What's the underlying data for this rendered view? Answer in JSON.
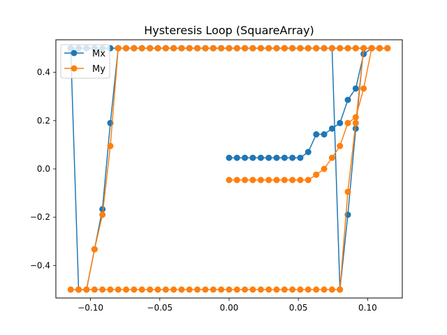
{
  "chart_data": {
    "type": "line",
    "title": "Hysteresis Loop (SquareArray)",
    "xlabel": "",
    "ylabel": "",
    "xlim": [
      -0.125,
      0.125
    ],
    "ylim": [
      -0.535,
      0.535
    ],
    "xticks": [
      -0.1,
      -0.05,
      0.0,
      0.05,
      0.1
    ],
    "xtick_labels": [
      "−0.10",
      "−0.05",
      "0.00",
      "0.05",
      "0.10"
    ],
    "yticks": [
      -0.4,
      -0.2,
      0.0,
      0.2,
      0.4
    ],
    "ytick_labels": [
      "−0.4",
      "−0.2",
      "0.0",
      "0.2",
      "0.4"
    ],
    "grid": false,
    "legend_position": "upper-left",
    "series": [
      {
        "name": "Mx",
        "color": "#1f77b4",
        "marker": "circle",
        "x": [
          0.0,
          0.0057,
          0.0114,
          0.0171,
          0.0229,
          0.0286,
          0.0343,
          0.04,
          0.0457,
          0.0514,
          0.0571,
          0.0629,
          0.0686,
          0.0743,
          0.08,
          0.0857,
          0.0914,
          0.0971,
          0.1029,
          0.1086,
          0.1143,
          0.1086,
          0.1029,
          0.0971,
          0.0914,
          0.0857,
          0.08,
          0.0743,
          0.0686,
          0.0629,
          0.0571,
          0.0514,
          0.0457,
          0.04,
          0.0343,
          0.0286,
          0.0229,
          0.0171,
          0.0114,
          0.0057,
          0.0,
          -0.0057,
          -0.0114,
          -0.0171,
          -0.0229,
          -0.0286,
          -0.0343,
          -0.04,
          -0.0457,
          -0.0514,
          -0.0571,
          -0.0629,
          -0.0686,
          -0.0743,
          -0.08,
          -0.0857,
          -0.0914,
          -0.0971,
          -0.1029,
          -0.1086,
          -0.1143,
          -0.1086,
          -0.1029,
          -0.0971,
          -0.0914,
          -0.0857,
          -0.08,
          -0.0743,
          -0.0686,
          -0.0629,
          -0.0571,
          -0.0514,
          -0.0457,
          -0.04,
          -0.0343,
          -0.0286,
          -0.0229,
          -0.0171,
          -0.0114,
          -0.0057,
          0.0,
          0.0057,
          0.0114,
          0.0171,
          0.0229,
          0.0286,
          0.0343,
          0.04,
          0.0457,
          0.0514,
          0.0571,
          0.0629,
          0.0686,
          0.0743,
          0.08,
          0.0857,
          0.0914,
          0.0971,
          0.1029,
          0.1086,
          0.1143
        ],
        "y": [
          0.046,
          0.046,
          0.046,
          0.046,
          0.046,
          0.046,
          0.046,
          0.046,
          0.046,
          0.046,
          0.07,
          0.143,
          0.143,
          0.167,
          0.19,
          0.286,
          0.333,
          0.476,
          0.5,
          0.5,
          0.5,
          0.5,
          0.5,
          0.5,
          0.5,
          0.5,
          0.5,
          0.5,
          0.5,
          0.5,
          0.5,
          0.5,
          0.5,
          0.5,
          0.5,
          0.5,
          0.5,
          0.5,
          0.5,
          0.5,
          0.5,
          0.5,
          0.5,
          0.5,
          0.5,
          0.5,
          0.5,
          0.5,
          0.5,
          0.5,
          0.5,
          0.5,
          0.5,
          0.5,
          0.5,
          0.5,
          0.5,
          0.5,
          0.5,
          0.5,
          0.5,
          -0.5,
          -0.5,
          -0.333,
          -0.167,
          0.19,
          0.5,
          0.5,
          0.5,
          0.5,
          0.5,
          0.5,
          0.5,
          0.5,
          0.5,
          0.5,
          0.5,
          0.5,
          0.5,
          0.5,
          0.5,
          0.5,
          0.5,
          0.5,
          0.5,
          0.5,
          0.5,
          0.5,
          0.5,
          0.5,
          0.5,
          0.5,
          0.5,
          0.5,
          -0.5,
          -0.19,
          0.167,
          0.5,
          0.5,
          0.5,
          0.5
        ]
      },
      {
        "name": "My",
        "color": "#ff7f0e",
        "marker": "circle",
        "x": [
          0.0,
          0.0057,
          0.0114,
          0.0171,
          0.0229,
          0.0286,
          0.0343,
          0.04,
          0.0457,
          0.0514,
          0.0571,
          0.0629,
          0.0686,
          0.0743,
          0.08,
          0.0857,
          0.0914,
          0.0971,
          0.1029,
          0.1086,
          0.1143,
          0.1086,
          0.1029,
          0.0971,
          0.0914,
          0.0857,
          0.08,
          0.0743,
          0.0686,
          0.0629,
          0.0571,
          0.0514,
          0.0457,
          0.04,
          0.0343,
          0.0286,
          0.0229,
          0.0171,
          0.0114,
          0.0057,
          0.0,
          -0.0057,
          -0.0114,
          -0.0171,
          -0.0229,
          -0.0286,
          -0.0343,
          -0.04,
          -0.0457,
          -0.0514,
          -0.0571,
          -0.0629,
          -0.0686,
          -0.0743,
          -0.08,
          -0.0857,
          -0.0914,
          -0.0971,
          -0.1029,
          -0.1086,
          -0.1143,
          -0.1086,
          -0.1029,
          -0.0971,
          -0.0914,
          -0.0857,
          -0.08,
          -0.0743,
          -0.0686,
          -0.0629,
          -0.0571,
          -0.0514,
          -0.0457,
          -0.04,
          -0.0343,
          -0.0286,
          -0.0229,
          -0.0171,
          -0.0114,
          -0.0057,
          0.0,
          0.0057,
          0.0114,
          0.0171,
          0.0229,
          0.0286,
          0.0343,
          0.04,
          0.0457,
          0.0514,
          0.0571,
          0.0629,
          0.0686,
          0.0743,
          0.08,
          0.0857,
          0.0914,
          0.0971,
          0.1029,
          0.1086,
          0.1143
        ],
        "y": [
          -0.046,
          -0.046,
          -0.046,
          -0.046,
          -0.046,
          -0.046,
          -0.046,
          -0.046,
          -0.046,
          -0.046,
          -0.046,
          -0.024,
          0.0,
          0.046,
          0.095,
          0.19,
          0.214,
          0.333,
          0.5,
          0.5,
          0.5,
          0.5,
          0.5,
          0.5,
          0.19,
          -0.095,
          -0.5,
          -0.5,
          -0.5,
          -0.5,
          -0.5,
          -0.5,
          -0.5,
          -0.5,
          -0.5,
          -0.5,
          -0.5,
          -0.5,
          -0.5,
          -0.5,
          -0.5,
          -0.5,
          -0.5,
          -0.5,
          -0.5,
          -0.5,
          -0.5,
          -0.5,
          -0.5,
          -0.5,
          -0.5,
          -0.5,
          -0.5,
          -0.5,
          -0.5,
          -0.5,
          -0.5,
          -0.5,
          -0.5,
          -0.5,
          -0.5,
          -0.5,
          -0.5,
          -0.333,
          -0.19,
          0.095,
          0.5,
          0.5,
          0.5,
          0.5,
          0.5,
          0.5,
          0.5,
          0.5,
          0.5,
          0.5,
          0.5,
          0.5,
          0.5,
          0.5,
          0.5,
          0.5,
          0.5,
          0.5,
          0.5,
          0.5,
          0.5,
          0.5,
          0.5,
          0.5,
          0.5,
          0.5,
          0.5,
          0.5,
          0.5,
          0.5,
          0.5,
          0.5,
          0.5,
          0.5,
          0.5
        ]
      }
    ]
  }
}
